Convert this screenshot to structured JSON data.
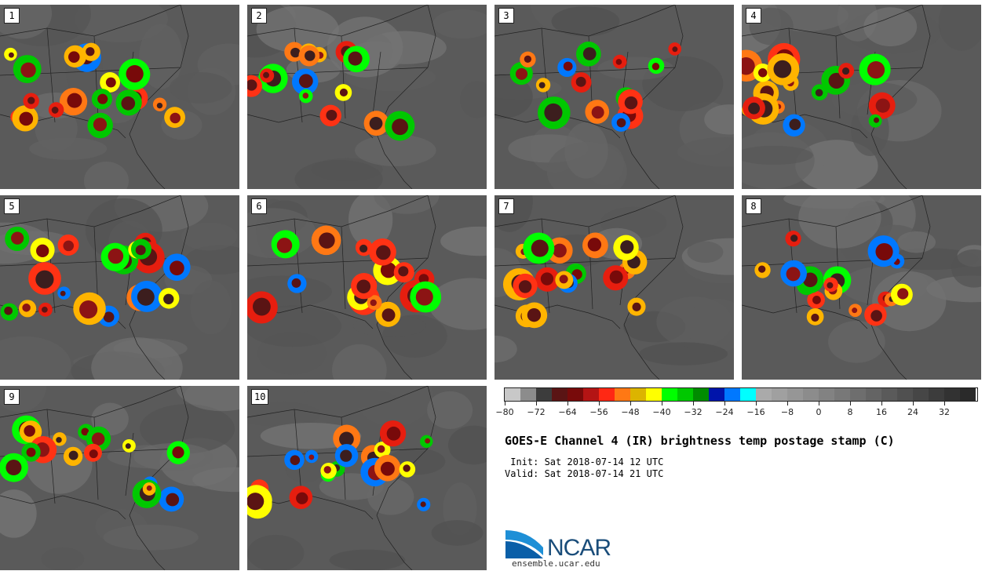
{
  "panels": [
    {
      "label": "1"
    },
    {
      "label": "2"
    },
    {
      "label": "3"
    },
    {
      "label": "4"
    },
    {
      "label": "5"
    },
    {
      "label": "6"
    },
    {
      "label": "7"
    },
    {
      "label": "8"
    },
    {
      "label": "9"
    },
    {
      "label": "10"
    }
  ],
  "colorbar": {
    "colors": [
      "#c8c8c8",
      "#8c8c8c",
      "#3c3c3c",
      "#5a1414",
      "#780a0a",
      "#b41414",
      "#ff2814",
      "#ff7814",
      "#dcb400",
      "#ffff00",
      "#00ff00",
      "#00c800",
      "#008c00",
      "#0014aa",
      "#0078ff",
      "#00ffff",
      "#aaaaaa",
      "#a0a0a0",
      "#969696",
      "#8c8c8c",
      "#828282",
      "#787878",
      "#6e6e6e",
      "#646464",
      "#5a5a5a",
      "#505050",
      "#464646",
      "#3c3c3c",
      "#323232",
      "#2a2a2a"
    ],
    "tick_labels": [
      "−80",
      "−72",
      "−64",
      "−56",
      "−48",
      "−40",
      "−32",
      "−24",
      "−16",
      "−8",
      "0",
      "8",
      "16",
      "24",
      "32"
    ]
  },
  "title": "GOES-E Channel 4 (IR) brightness temp postage stamp (C)",
  "init": " Init: Sat 2018-07-14 12 UTC",
  "valid": "Valid: Sat 2018-07-14 21 UTC",
  "logo": {
    "name": "NCAR",
    "url": "ensemble.ucar.edu"
  }
}
